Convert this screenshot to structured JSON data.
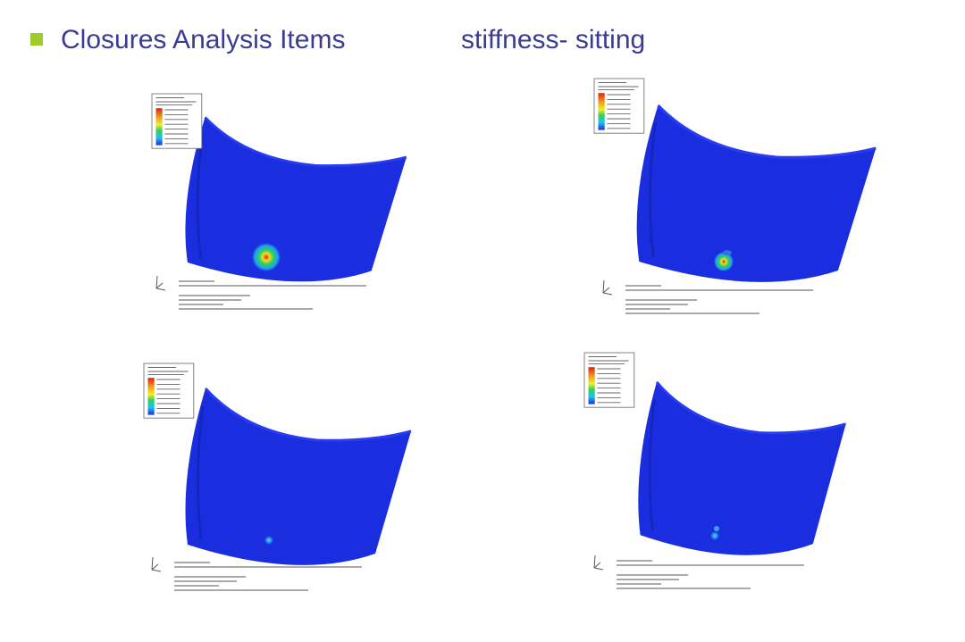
{
  "header": {
    "title": "Closures Analysis Items",
    "subtitle": "stiffness- sitting"
  }
}
